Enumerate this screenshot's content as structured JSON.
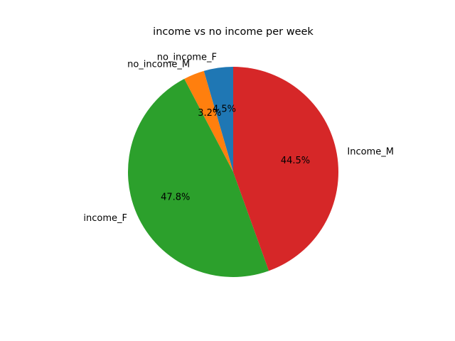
{
  "chart_data": {
    "type": "pie",
    "title": "income vs no income per week",
    "categories": [
      "no_income_F",
      "no_income_M",
      "income_F",
      "Income_M"
    ],
    "values": [
      4.5,
      3.2,
      47.8,
      44.5
    ],
    "value_labels": [
      "4.5%",
      "3.2%",
      "47.8%",
      "44.5%"
    ],
    "colors": [
      "#1f77b4",
      "#ff7f0e",
      "#2ca02c",
      "#d62728"
    ],
    "start_angle_deg": 90,
    "direction": "counterclockwise",
    "legend": "none"
  }
}
